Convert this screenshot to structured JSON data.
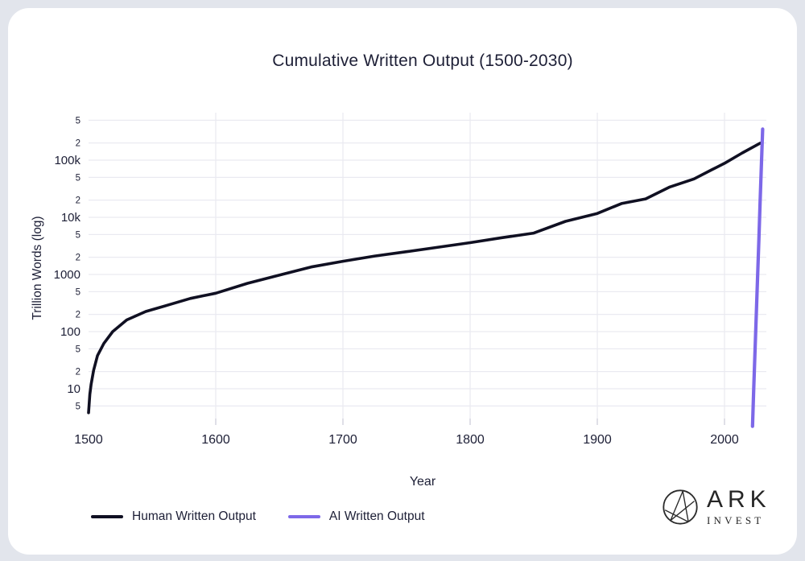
{
  "chart": {
    "title": "Cumulative Written Output (1500-2030)",
    "xlabel": "Year",
    "ylabel": "Trillion Words (log)"
  },
  "legend": {
    "items": [
      {
        "label": "Human Written Output",
        "color": "#101022"
      },
      {
        "label": "AI Written Output",
        "color": "#7d68e8"
      }
    ]
  },
  "logo": {
    "line1": "ARK",
    "line2": "INVEST"
  },
  "colors": {
    "text": "#1d1f36",
    "human_line": "#101022",
    "ai_line": "#7d68e8",
    "gridline": "#eaeaf1",
    "tick_mark": "#d4d4df",
    "card_bg": "#ffffff",
    "page_bg": "#e2e5ec"
  },
  "chart_data": {
    "type": "line",
    "title": "Cumulative Written Output (1500-2030)",
    "xlabel": "Year",
    "ylabel": "Trillion Words (log)",
    "y_scale": "log",
    "xlim": [
      1500,
      2033
    ],
    "ylim": [
      2.2,
      680000
    ],
    "grid": true,
    "legend_position": "bottom-left",
    "x_ticks": [
      1500,
      1600,
      1700,
      1800,
      1900,
      2000
    ],
    "y_ticks": [
      {
        "value": 500000,
        "label": "5",
        "minor": true
      },
      {
        "value": 200000,
        "label": "2",
        "minor": true
      },
      {
        "value": 100000,
        "label": "100k",
        "minor": false
      },
      {
        "value": 50000,
        "label": "5",
        "minor": true
      },
      {
        "value": 20000,
        "label": "2",
        "minor": true
      },
      {
        "value": 10000,
        "label": "10k",
        "minor": false
      },
      {
        "value": 5000,
        "label": "5",
        "minor": true
      },
      {
        "value": 2000,
        "label": "2",
        "minor": true
      },
      {
        "value": 1000,
        "label": "1000",
        "minor": false
      },
      {
        "value": 500,
        "label": "5",
        "minor": true
      },
      {
        "value": 200,
        "label": "2",
        "minor": true
      },
      {
        "value": 100,
        "label": "100",
        "minor": false
      },
      {
        "value": 50,
        "label": "5",
        "minor": true
      },
      {
        "value": 20,
        "label": "2",
        "minor": true
      },
      {
        "value": 10,
        "label": "10",
        "minor": false
      },
      {
        "value": 5,
        "label": "5",
        "minor": true
      }
    ],
    "series": [
      {
        "name": "Human Written Output",
        "color": "#101022",
        "points": [
          [
            1500,
            3.8
          ],
          [
            1501,
            8
          ],
          [
            1502,
            12
          ],
          [
            1504,
            21
          ],
          [
            1507,
            38
          ],
          [
            1512,
            62
          ],
          [
            1519,
            100
          ],
          [
            1530,
            160
          ],
          [
            1545,
            225
          ],
          [
            1562,
            290
          ],
          [
            1580,
            380
          ],
          [
            1600,
            470
          ],
          [
            1625,
            700
          ],
          [
            1652,
            1000
          ],
          [
            1675,
            1350
          ],
          [
            1700,
            1700
          ],
          [
            1725,
            2100
          ],
          [
            1750,
            2500
          ],
          [
            1775,
            3000
          ],
          [
            1800,
            3600
          ],
          [
            1825,
            4400
          ],
          [
            1850,
            5300
          ],
          [
            1875,
            8500
          ],
          [
            1900,
            11700
          ],
          [
            1919,
            17400
          ],
          [
            1938,
            21000
          ],
          [
            1957,
            34000
          ],
          [
            1976,
            47000
          ],
          [
            1990,
            68000
          ],
          [
            2000,
            88000
          ],
          [
            2014,
            134000
          ],
          [
            2028,
            198000
          ]
        ]
      },
      {
        "name": "AI Written Output",
        "color": "#7d68e8",
        "points": [
          [
            2022,
            2.2
          ],
          [
            2023,
            10
          ],
          [
            2024,
            45
          ],
          [
            2025,
            200
          ],
          [
            2026,
            900
          ],
          [
            2027,
            4000
          ],
          [
            2028,
            18000
          ],
          [
            2029,
            80000
          ],
          [
            2030,
            350000
          ]
        ]
      }
    ]
  }
}
